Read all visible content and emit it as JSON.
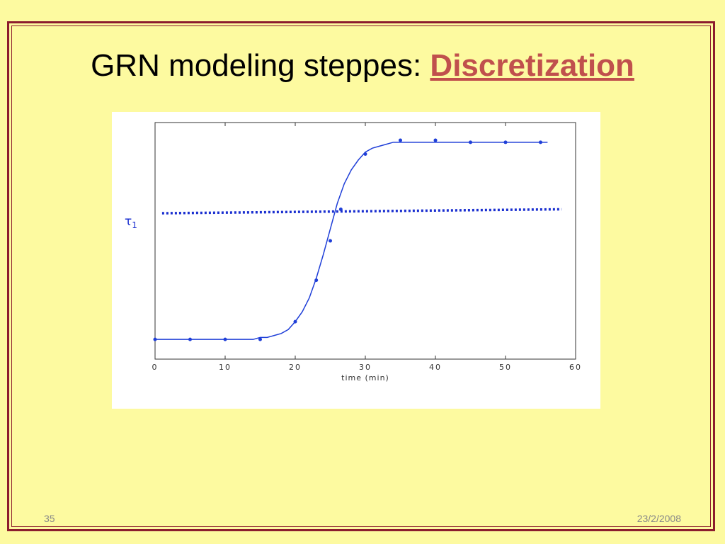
{
  "header": {
    "title": "GRN modeling steppes:",
    "highlight": "Discretization"
  },
  "chart_data": {
    "type": "line",
    "x_label": "time (min)",
    "annotation": {
      "text": "τ",
      "subscript": "1"
    },
    "xlim": [
      0,
      60
    ],
    "xticks": [
      0,
      10,
      20,
      30,
      40,
      50,
      60
    ],
    "ylim": [
      0,
      12
    ],
    "series": [
      {
        "style": "line",
        "color": "#1f3fd8",
        "x": [
          0,
          1,
          2,
          3,
          4,
          5,
          6,
          7,
          8,
          9,
          10,
          11,
          12,
          13,
          14,
          15,
          16,
          17,
          18,
          19,
          20,
          21,
          22,
          23,
          24,
          25,
          26,
          27,
          28,
          29,
          30,
          31,
          32,
          33,
          34,
          35,
          36,
          37,
          38,
          39,
          40,
          41,
          42,
          43,
          44,
          45,
          46,
          47,
          48,
          49,
          50,
          51,
          52,
          53,
          54,
          55,
          56
        ],
        "values": [
          1,
          1,
          1,
          1,
          1,
          1,
          1,
          1,
          1,
          1,
          1,
          1,
          1,
          1,
          1,
          1.1,
          1.1,
          1.2,
          1.3,
          1.5,
          1.9,
          2.4,
          3.1,
          4.1,
          5.3,
          6.6,
          7.9,
          8.9,
          9.6,
          10.1,
          10.5,
          10.7,
          10.8,
          10.9,
          11,
          11,
          11,
          11,
          11,
          11,
          11,
          11,
          11,
          11,
          11,
          11,
          11,
          11,
          11,
          11,
          11,
          11,
          11,
          11,
          11,
          11,
          11
        ]
      },
      {
        "style": "markers",
        "color": "#1f3fd8",
        "x": [
          0,
          5,
          10,
          15,
          20,
          23,
          25,
          26.5,
          30,
          35,
          40,
          45,
          50,
          55
        ],
        "values": [
          1,
          1,
          1,
          1,
          1.9,
          4,
          6,
          7.6,
          10.4,
          11.1,
          11.1,
          11,
          11,
          11
        ]
      },
      {
        "style": "dotted",
        "color": "#1a2fd0",
        "x": [
          1,
          58
        ],
        "values": [
          7.4,
          7.6
        ]
      }
    ]
  },
  "footer": {
    "page": "35",
    "date": "23/2/2008"
  }
}
